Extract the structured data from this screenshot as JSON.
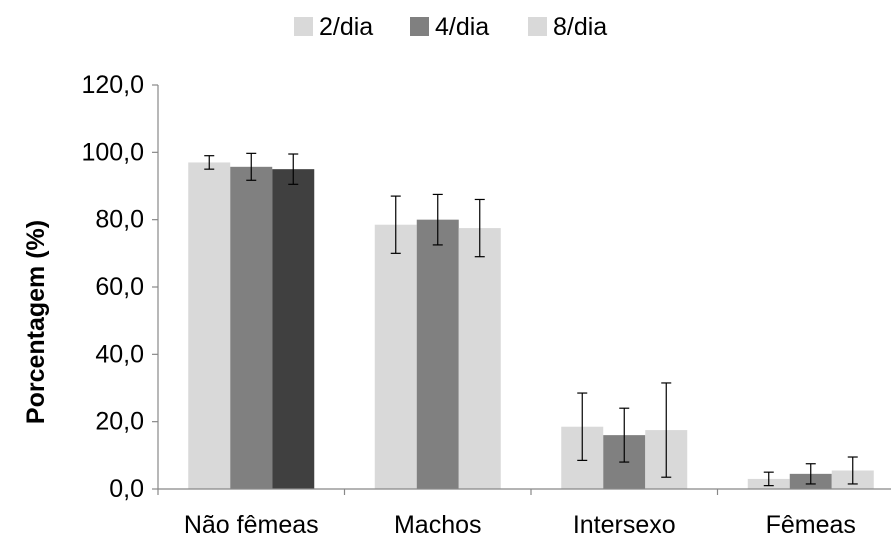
{
  "chart_data": {
    "type": "bar",
    "title": "",
    "xlabel": "",
    "ylabel": "Porcentagem (%)",
    "ylim": [
      0,
      120
    ],
    "y_ticks": [
      "0,0",
      "20,0",
      "40,0",
      "60,0",
      "80,0",
      "100,0",
      "120,0"
    ],
    "grid": false,
    "legend_position": "top",
    "categories": [
      "Não fêmeas",
      "Machos",
      "Intersexo",
      "Fêmeas"
    ],
    "series": [
      {
        "name": "2/dia",
        "color": "#d9d9d9",
        "values": [
          97,
          78.5,
          18.5,
          3
        ],
        "errors": [
          2,
          8.5,
          10,
          2
        ]
      },
      {
        "name": "4/dia",
        "color": "#808080",
        "values": [
          95.7,
          80,
          16,
          4.5
        ],
        "errors": [
          4,
          7.5,
          8,
          3
        ]
      },
      {
        "name": "8/dia",
        "color_by_category": [
          "#404040",
          "#d9d9d9",
          "#d9d9d9",
          "#d9d9d9"
        ],
        "legend_color": "#d9d9d9",
        "values": [
          95,
          77.5,
          17.5,
          5.5
        ],
        "errors": [
          4.5,
          8.5,
          14,
          4
        ]
      }
    ]
  }
}
